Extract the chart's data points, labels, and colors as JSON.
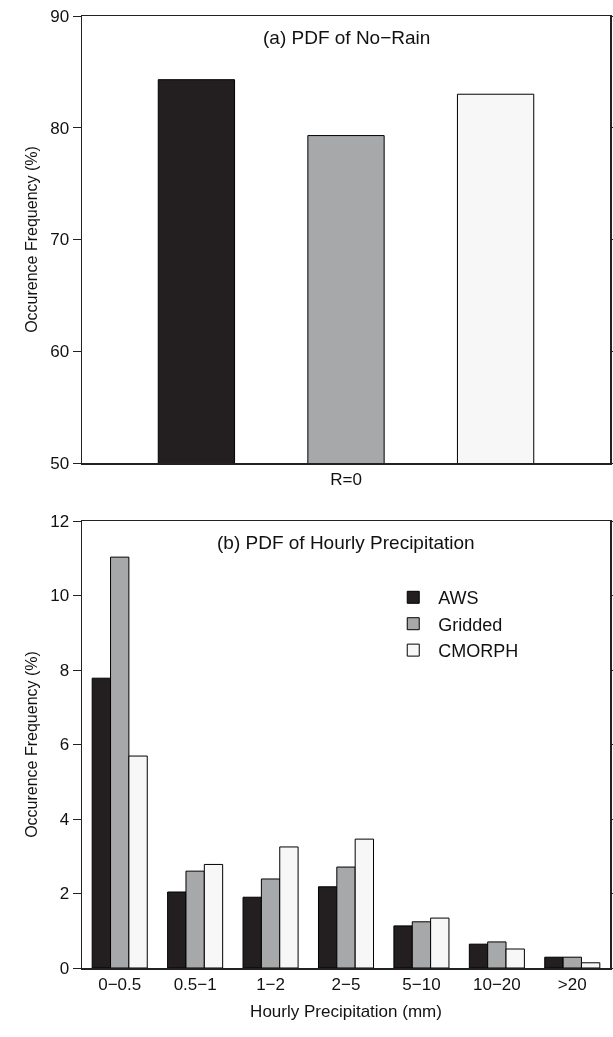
{
  "chart_data": [
    {
      "type": "bar",
      "title": "(a) PDF of No−Rain",
      "ylabel": "Occurence Frequency (%)",
      "categories": [
        "R=0"
      ],
      "series": [
        {
          "color": "#231f20",
          "values": [
            84.3
          ]
        },
        {
          "color": "#a7a8aa",
          "values": [
            79.3
          ]
        },
        {
          "color": "#f7f7f7",
          "values": [
            83.0
          ]
        }
      ],
      "ylim": [
        50,
        90
      ],
      "yticks": [
        50,
        60,
        70,
        80,
        90
      ],
      "grid": false
    },
    {
      "type": "bar",
      "title": "(b) PDF of Hourly Precipitation",
      "ylabel": "Occurence Frequency (%)",
      "xlabel": "Hourly Precipitation (mm)",
      "categories": [
        "0−0.5",
        "0.5−1",
        "1−2",
        "2−5",
        "5−10",
        "10−20",
        ">20"
      ],
      "series": [
        {
          "name": "AWS",
          "color": "#231f20",
          "values": [
            7.78,
            2.04,
            1.9,
            2.18,
            1.13,
            0.64,
            0.29
          ]
        },
        {
          "name": "Gridded",
          "color": "#a7a8aa",
          "values": [
            11.03,
            2.6,
            2.39,
            2.71,
            1.24,
            0.7,
            0.29
          ]
        },
        {
          "name": "CMORPH",
          "color": "#f7f7f7",
          "values": [
            5.69,
            2.78,
            3.25,
            3.46,
            1.34,
            0.51,
            0.14
          ]
        }
      ],
      "ylim": [
        0,
        12
      ],
      "yticks": [
        0,
        2,
        4,
        6,
        8,
        10,
        12
      ],
      "grid": false,
      "legend": "top right"
    }
  ]
}
